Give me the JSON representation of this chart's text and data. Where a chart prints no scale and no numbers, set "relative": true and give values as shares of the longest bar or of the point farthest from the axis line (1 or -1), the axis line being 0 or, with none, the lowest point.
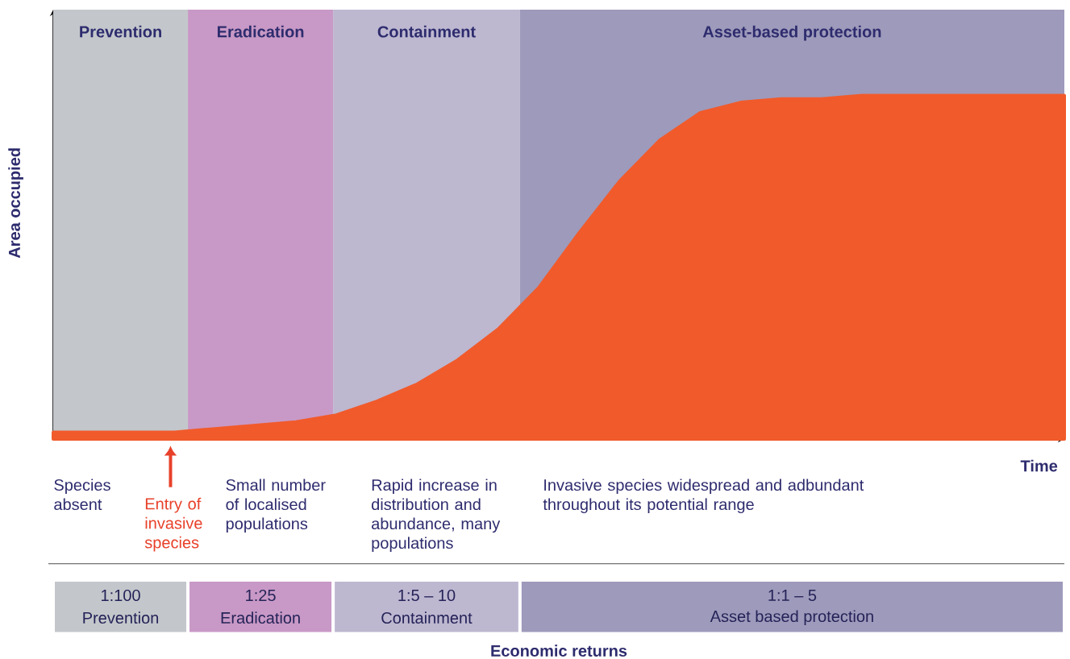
{
  "chart_data": {
    "type": "area",
    "relative": true,
    "xlabel": "Time",
    "ylabel": "Area occupied",
    "categories": [
      null,
      null,
      null,
      null,
      null,
      null,
      null,
      null,
      null,
      null,
      null,
      null,
      null,
      null,
      null,
      null,
      null,
      null,
      null,
      null,
      null,
      null,
      null,
      null,
      null,
      null
    ],
    "series": [
      {
        "color": "#f15a2b",
        "values": [
          0.02,
          0.02,
          0.02,
          0.02,
          0.03,
          0.04,
          0.05,
          0.07,
          0.11,
          0.16,
          0.23,
          0.32,
          0.44,
          0.6,
          0.75,
          0.87,
          0.95,
          0.98,
          0.99,
          0.99,
          1,
          1,
          1,
          1,
          1,
          1
        ]
      }
    ],
    "annotations": [
      "Prevention",
      "Eradication",
      "Containment",
      "Asset-based protection",
      "Species absent",
      "Entry of invasive species",
      "Small number of localised populations",
      "Rapid increase in distribution and abundance, many populations",
      "Invasive species widespread and adbundant throughout its potential range",
      "1:100",
      "Prevention",
      "1:25",
      "Eradication",
      "1:5 – 10",
      "Containment",
      "1:1 – 5",
      "Asset based protection",
      "Economic returns"
    ]
  }
}
